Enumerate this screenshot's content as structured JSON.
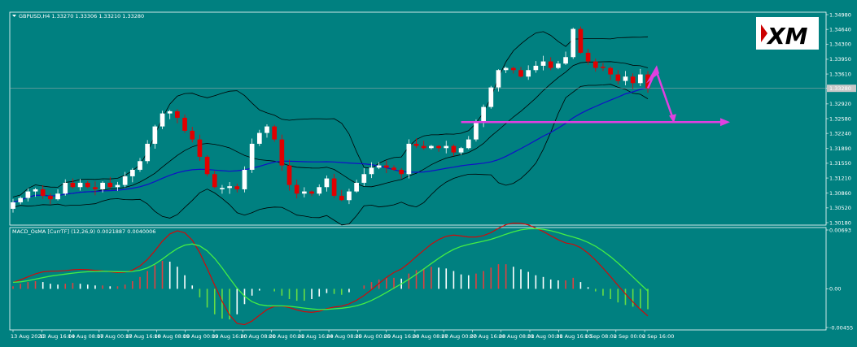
{
  "chart_data": {
    "type": "candlestick",
    "symbol_line": "GBPUSD,H4  1.33270 1.33306 1.33210 1.33280",
    "indicator_line": "MACD_OsMA [CurrTF] (12,26,9) 0.0021887 0.0040006",
    "logo_text": "XM",
    "colors": {
      "background": "#008080",
      "bull": "#ffffff",
      "bear": "#e00000",
      "bands": "#000000",
      "ma": "#1010c8",
      "arrow": "#e040e0",
      "hist_pos_up": "#e04040",
      "hist_pos_down": "#ffffff",
      "hist_neg_down": "#66dd44",
      "hist_neg_up": "#ffffff",
      "macd_line": "#e00000",
      "signal_line": "#44ee44"
    },
    "price_axis": {
      "ticks": [
        "1.34980",
        "1.34640",
        "1.34300",
        "1.33950",
        "1.33610",
        "1.33280",
        "1.32920",
        "1.32580",
        "1.32240",
        "1.31890",
        "1.31550",
        "1.31210",
        "1.30860",
        "1.30520",
        "1.30180"
      ],
      "ylim": [
        1.3018,
        1.3498
      ],
      "current_price": "1.33280"
    },
    "indicator_axis": {
      "ticks": [
        "0.00693",
        "0.00",
        "-0.00455"
      ],
      "ylim": [
        -0.00455,
        0.00693
      ]
    },
    "time_axis": [
      "13 Aug 2020",
      "13 Aug 16:00",
      "14 Aug 08:00",
      "17 Aug 00:00",
      "17 Aug 16:00",
      "18 Aug 08:00",
      "19 Aug 00:00",
      "19 Aug 16:00",
      "20 Aug 08:00",
      "21 Aug 00:00",
      "21 Aug 16:00",
      "24 Aug 08:00",
      "25 Aug 00:00",
      "25 Aug 16:00",
      "26 Aug 08:00",
      "27 Aug 00:00",
      "27 Aug 16:00",
      "28 Aug 08:00",
      "31 Aug 00:00",
      "31 Aug 16:00",
      "1 Sep 08:00",
      "2 Sep 00:00",
      "2 Sep 16:00"
    ],
    "close": [
      1.3065,
      1.3075,
      1.309,
      1.3095,
      1.308,
      1.3072,
      1.3085,
      1.311,
      1.31,
      1.311,
      1.31,
      1.3095,
      1.311,
      1.31,
      1.3105,
      1.3125,
      1.314,
      1.316,
      1.32,
      1.324,
      1.327,
      1.3275,
      1.326,
      1.323,
      1.321,
      1.317,
      1.313,
      1.31,
      1.3098,
      1.3102,
      1.3095,
      1.314,
      1.32,
      1.3225,
      1.324,
      1.321,
      1.315,
      1.3105,
      1.3085,
      1.309,
      1.3085,
      1.31,
      1.312,
      1.308,
      1.307,
      1.309,
      1.311,
      1.313,
      1.3145,
      1.315,
      1.3145,
      1.314,
      1.313,
      1.32,
      1.3195,
      1.319,
      1.3195,
      1.319,
      1.3195,
      1.318,
      1.319,
      1.321,
      1.325,
      1.3285,
      1.333,
      1.337,
      1.3375,
      1.337,
      1.3355,
      1.337,
      1.338,
      1.339,
      1.3375,
      1.3385,
      1.34,
      1.3465,
      1.341,
      1.339,
      1.3375,
      1.3375,
      1.336,
      1.3345,
      1.3355,
      1.334,
      1.336,
      1.3328
    ],
    "macd_hist": [
      0.0003,
      0.0006,
      0.0008,
      0.0009,
      0.0008,
      0.0006,
      0.0005,
      0.0006,
      0.0007,
      0.0006,
      0.0005,
      0.0004,
      0.0004,
      0.0003,
      0.0003,
      0.0005,
      0.0009,
      0.0014,
      0.0021,
      0.0028,
      0.0033,
      0.0032,
      0.0026,
      0.0016,
      0.0004,
      -0.001,
      -0.0022,
      -0.003,
      -0.0035,
      -0.0036,
      -0.003,
      -0.0018,
      -0.0008,
      -0.0002,
      0.0,
      -0.0003,
      -0.0008,
      -0.0012,
      -0.0014,
      -0.0014,
      -0.0012,
      -0.0009,
      -0.0005,
      -0.0006,
      -0.0007,
      -0.0004,
      0.0,
      0.0004,
      0.0008,
      0.0011,
      0.0013,
      0.0013,
      0.0012,
      0.0018,
      0.0022,
      0.0024,
      0.0026,
      0.0025,
      0.0024,
      0.0021,
      0.0017,
      0.0016,
      0.0018,
      0.0021,
      0.0025,
      0.0029,
      0.0029,
      0.0026,
      0.0023,
      0.002,
      0.0016,
      0.0014,
      0.0011,
      0.001,
      0.001,
      0.0013,
      0.0008,
      0.0002,
      -0.0003,
      -0.0008,
      -0.0012,
      -0.0016,
      -0.0019,
      -0.0021,
      -0.0023,
      -0.0024
    ],
    "trendline_level": 1.325,
    "arrow_projection": {
      "from_price": 1.3328,
      "peak_price": 1.337,
      "end_price": 1.325
    }
  }
}
